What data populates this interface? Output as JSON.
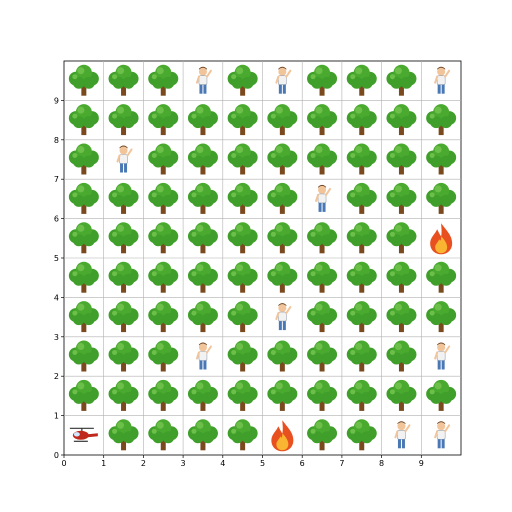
{
  "grid": {
    "cols": 10,
    "rows": 10,
    "x_ticks": [
      "0",
      "1",
      "2",
      "3",
      "4",
      "5",
      "6",
      "7",
      "8",
      "9"
    ],
    "y_ticks": [
      "0",
      "1",
      "2",
      "3",
      "4",
      "5",
      "6",
      "7",
      "8",
      "9"
    ],
    "cells": [
      [
        "tree",
        "tree",
        "tree",
        "person",
        "tree",
        "person",
        "tree",
        "tree",
        "tree",
        "person"
      ],
      [
        "tree",
        "tree",
        "tree",
        "tree",
        "tree",
        "tree",
        "tree",
        "tree",
        "tree",
        "tree"
      ],
      [
        "tree",
        "person",
        "tree",
        "tree",
        "tree",
        "tree",
        "tree",
        "tree",
        "tree",
        "tree"
      ],
      [
        "tree",
        "tree",
        "tree",
        "tree",
        "tree",
        "tree",
        "person",
        "tree",
        "tree",
        "tree"
      ],
      [
        "tree",
        "tree",
        "tree",
        "tree",
        "tree",
        "tree",
        "tree",
        "tree",
        "tree",
        "fire"
      ],
      [
        "tree",
        "tree",
        "tree",
        "tree",
        "tree",
        "tree",
        "tree",
        "tree",
        "tree",
        "tree"
      ],
      [
        "tree",
        "tree",
        "tree",
        "tree",
        "tree",
        "person",
        "tree",
        "tree",
        "tree",
        "tree"
      ],
      [
        "tree",
        "tree",
        "tree",
        "person",
        "tree",
        "tree",
        "tree",
        "tree",
        "tree",
        "person"
      ],
      [
        "tree",
        "tree",
        "tree",
        "tree",
        "tree",
        "tree",
        "tree",
        "tree",
        "tree",
        "tree"
      ],
      [
        "helicopter",
        "tree",
        "tree",
        "tree",
        "tree",
        "fire",
        "tree",
        "tree",
        "person",
        "person"
      ]
    ]
  },
  "colors": {
    "tree_leaf": "#3f9f2a",
    "tree_leaf_light": "#6cc04a",
    "tree_trunk": "#7a4a1e",
    "fire_outer": "#e8501f",
    "fire_inner": "#f9b531",
    "person_shirt": "#f2f2f2",
    "person_pants": "#4a78b5",
    "person_skin": "#f1c49a",
    "helicopter_body": "#c0281e",
    "grid_line": "#b0b0b0"
  },
  "icons": {
    "tree": "tree-icon",
    "fire": "fire-icon",
    "person": "person-icon",
    "helicopter": "helicopter-icon"
  }
}
